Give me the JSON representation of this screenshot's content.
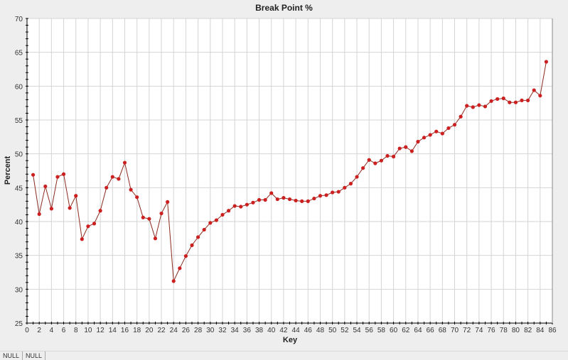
{
  "chart_data": {
    "type": "line",
    "title": "Break Point %",
    "xlabel": "Key",
    "ylabel": "Percent",
    "xlim": [
      0,
      86
    ],
    "ylim": [
      25,
      70
    ],
    "xticks": [
      0,
      2,
      4,
      6,
      8,
      10,
      12,
      14,
      16,
      18,
      20,
      22,
      24,
      26,
      28,
      30,
      32,
      34,
      36,
      38,
      40,
      42,
      44,
      46,
      48,
      50,
      52,
      54,
      56,
      58,
      60,
      62,
      64,
      66,
      68,
      70,
      72,
      74,
      76,
      78,
      80,
      82,
      84,
      86
    ],
    "yticks": [
      25,
      30,
      35,
      40,
      45,
      50,
      55,
      60,
      65,
      70
    ],
    "grid": true,
    "line_color": "#8b2a1e",
    "marker_color": "#cc1f1f",
    "x": [
      1,
      2,
      3,
      4,
      5,
      6,
      7,
      8,
      9,
      10,
      11,
      12,
      13,
      14,
      15,
      16,
      17,
      18,
      19,
      20,
      21,
      22,
      23,
      24,
      25,
      26,
      27,
      28,
      29,
      30,
      31,
      32,
      33,
      34,
      35,
      36,
      37,
      38,
      39,
      40,
      41,
      42,
      43,
      44,
      45,
      46,
      47,
      48,
      49,
      50,
      51,
      52,
      53,
      54,
      55,
      56,
      57,
      58,
      59,
      60,
      61,
      62,
      63,
      64,
      65,
      66,
      67,
      68,
      69,
      70,
      71,
      72,
      73,
      74,
      75,
      76,
      77,
      78,
      79,
      80,
      81,
      82,
      83,
      84,
      85
    ],
    "y": [
      46.9,
      41.1,
      45.2,
      41.9,
      46.6,
      47.0,
      42.0,
      43.8,
      37.4,
      39.3,
      39.7,
      41.6,
      45.0,
      46.6,
      46.3,
      48.7,
      44.7,
      43.6,
      40.6,
      40.4,
      37.5,
      41.2,
      42.9,
      31.2,
      33.1,
      34.9,
      36.5,
      37.7,
      38.8,
      39.8,
      40.2,
      41.0,
      41.6,
      42.3,
      42.2,
      42.5,
      42.8,
      43.2,
      43.2,
      44.2,
      43.3,
      43.5,
      43.3,
      43.1,
      43.0,
      43.0,
      43.4,
      43.8,
      43.9,
      44.3,
      44.4,
      45.0,
      45.6,
      46.6,
      47.9,
      49.1,
      48.6,
      49.0,
      49.7,
      49.6,
      50.8,
      51.0,
      50.4,
      51.8,
      52.4,
      52.8,
      53.3,
      53.0,
      53.8,
      54.3,
      55.5,
      57.1,
      56.9,
      57.2,
      57.0,
      57.8,
      58.1,
      58.2,
      57.6,
      57.6,
      57.9,
      57.9,
      59.4,
      58.6,
      63.6
    ]
  },
  "status_bar": [
    "NULL",
    "NULL"
  ]
}
